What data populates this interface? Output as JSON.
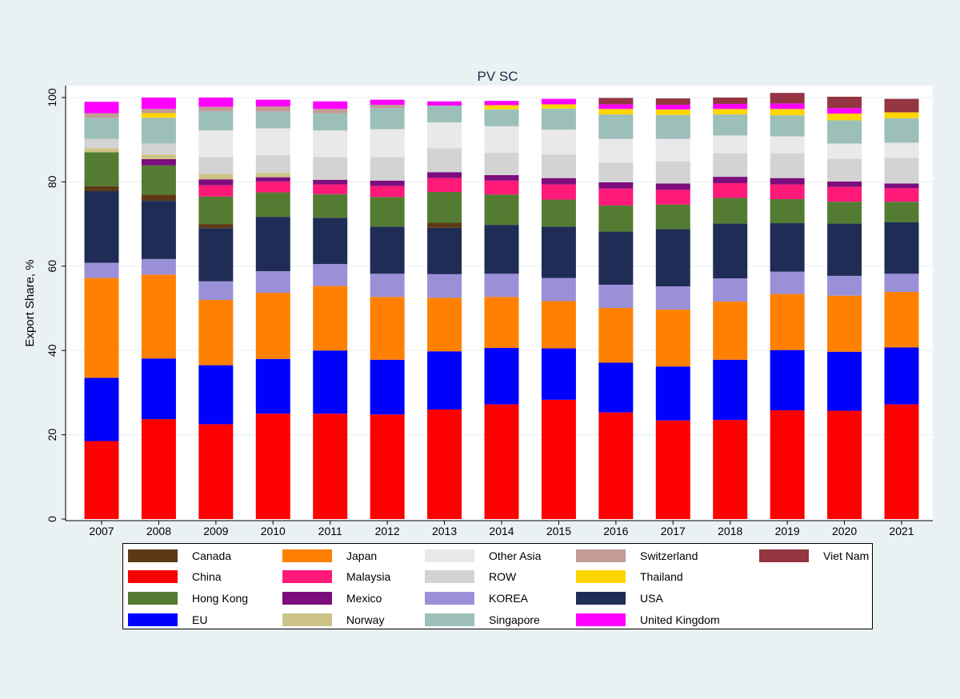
{
  "chart_data": {
    "type": "bar",
    "stacked": true,
    "title": "PV SC",
    "xlabel": "",
    "ylabel": "Export Share, %",
    "ylim": [
      0,
      100
    ],
    "yticks": [
      0,
      20,
      40,
      60,
      80,
      100
    ],
    "grid": true,
    "legend_position": "bottom",
    "categories": [
      "2007",
      "2008",
      "2009",
      "2010",
      "2011",
      "2012",
      "2013",
      "2014",
      "2015",
      "2016",
      "2017",
      "2018",
      "2019",
      "2020",
      "2021"
    ],
    "series": [
      {
        "name": "China",
        "color": "#ff0000",
        "values": [
          18.5,
          23.7,
          22.5,
          25.0,
          25.0,
          24.8,
          26.0,
          27.2,
          28.3,
          25.3,
          23.4,
          23.5,
          25.8,
          25.7,
          27.2
        ]
      },
      {
        "name": "EU",
        "color": "#0000ff",
        "values": [
          15.0,
          14.4,
          14.0,
          13.0,
          15.0,
          13.0,
          13.8,
          13.4,
          12.2,
          11.8,
          12.8,
          14.3,
          14.3,
          14.0,
          13.5
        ]
      },
      {
        "name": "Japan",
        "color": "#ff8000",
        "values": [
          23.7,
          19.9,
          15.5,
          15.7,
          15.3,
          14.9,
          12.7,
          12.1,
          11.2,
          13.0,
          13.5,
          13.8,
          13.3,
          13.3,
          13.2
        ]
      },
      {
        "name": "KOREA",
        "color": "#9a90d8",
        "values": [
          3.6,
          3.7,
          4.4,
          5.1,
          5.2,
          5.5,
          5.6,
          5.5,
          5.5,
          5.5,
          5.5,
          5.5,
          5.3,
          4.7,
          4.3
        ]
      },
      {
        "name": "USA",
        "color": "#1f2d56",
        "values": [
          17.0,
          13.8,
          12.6,
          12.9,
          11.0,
          11.2,
          11.0,
          11.6,
          12.2,
          12.6,
          13.6,
          13.0,
          11.5,
          12.4,
          12.2
        ]
      },
      {
        "name": "Canada",
        "color": "#5c3a16",
        "values": [
          1.2,
          1.5,
          1.0,
          0.0,
          0.0,
          0.0,
          1.2,
          0.0,
          0.0,
          0.0,
          0.0,
          0.0,
          0.0,
          0.0,
          0.0
        ]
      },
      {
        "name": "Hong Kong",
        "color": "#537c32",
        "values": [
          8.0,
          6.9,
          6.5,
          5.8,
          5.6,
          7.0,
          7.3,
          7.2,
          6.4,
          6.2,
          5.8,
          6.1,
          5.7,
          5.2,
          4.9
        ]
      },
      {
        "name": "Malaysia",
        "color": "#ff1a7a",
        "values": [
          0.0,
          0.0,
          2.7,
          2.6,
          2.3,
          2.6,
          3.3,
          3.3,
          3.6,
          4.0,
          3.5,
          3.5,
          3.5,
          3.5,
          3.2
        ]
      },
      {
        "name": "Mexico",
        "color": "#7d0d7d",
        "values": [
          0.0,
          1.5,
          1.4,
          1.0,
          1.1,
          1.3,
          1.4,
          1.3,
          1.5,
          1.5,
          1.5,
          1.5,
          1.5,
          1.3,
          1.1
        ]
      },
      {
        "name": "Norway",
        "color": "#cec386",
        "values": [
          1.0,
          1.1,
          1.3,
          1.0,
          0.0,
          0.0,
          0.0,
          0.0,
          0.0,
          0.0,
          0.0,
          0.0,
          0.0,
          0.0,
          0.0
        ]
      },
      {
        "name": "ROW",
        "color": "#d3d3d3",
        "values": [
          2.2,
          2.6,
          4.0,
          4.3,
          5.4,
          5.6,
          5.7,
          5.3,
          5.6,
          4.7,
          5.3,
          5.6,
          5.9,
          5.4,
          6.1
        ]
      },
      {
        "name": "Other Asia",
        "color": "#e9e9e9",
        "values": [
          0.0,
          0.0,
          6.3,
          6.3,
          6.3,
          6.6,
          6.1,
          6.3,
          5.9,
          5.6,
          5.3,
          4.2,
          4.0,
          3.6,
          3.6
        ]
      },
      {
        "name": "Singapore",
        "color": "#9cbfba",
        "values": [
          5.0,
          6.1,
          4.6,
          4.0,
          4.1,
          5.0,
          4.0,
          4.0,
          5.0,
          5.8,
          5.7,
          5.0,
          5.0,
          5.5,
          5.8
        ]
      },
      {
        "name": "Thailand",
        "color": "#ffd500",
        "values": [
          0.0,
          1.1,
          0.0,
          0.0,
          0.0,
          0.0,
          0.0,
          1.0,
          1.0,
          1.3,
          1.3,
          1.3,
          1.5,
          1.6,
          1.4
        ]
      },
      {
        "name": "Switzerland",
        "color": "#c39c95",
        "values": [
          1.1,
          1.0,
          1.0,
          1.2,
          1.0,
          0.8,
          0.0,
          0.0,
          0.0,
          0.0,
          0.0,
          0.0,
          0.0,
          0.0,
          0.0
        ]
      },
      {
        "name": "United Kingdom",
        "color": "#ff00ff",
        "values": [
          2.7,
          2.7,
          2.2,
          1.6,
          1.8,
          1.2,
          1.0,
          1.0,
          1.3,
          1.1,
          1.1,
          1.2,
          1.3,
          1.3,
          0.0
        ]
      },
      {
        "name": "Viet Nam",
        "color": "#943542",
        "values": [
          0.0,
          0.0,
          0.0,
          0.0,
          0.0,
          0.0,
          0.0,
          0.0,
          0.0,
          1.5,
          1.5,
          1.5,
          2.5,
          2.7,
          3.2
        ]
      }
    ],
    "legend": [
      {
        "name": "Canada",
        "color": "#5c3a16"
      },
      {
        "name": "China",
        "color": "#ff0000"
      },
      {
        "name": "Hong Kong",
        "color": "#537c32"
      },
      {
        "name": "EU",
        "color": "#0000ff"
      },
      {
        "name": "Japan",
        "color": "#ff8000"
      },
      {
        "name": "Malaysia",
        "color": "#ff1a7a"
      },
      {
        "name": "Mexico",
        "color": "#7d0d7d"
      },
      {
        "name": "Norway",
        "color": "#cec386"
      },
      {
        "name": "Other Asia",
        "color": "#e9e9e9"
      },
      {
        "name": "ROW",
        "color": "#d3d3d3"
      },
      {
        "name": "KOREA",
        "color": "#9a90d8"
      },
      {
        "name": "Singapore",
        "color": "#9cbfba"
      },
      {
        "name": "Switzerland",
        "color": "#c39c95"
      },
      {
        "name": "Thailand",
        "color": "#ffd500"
      },
      {
        "name": "USA",
        "color": "#1f2d56"
      },
      {
        "name": "United Kingdom",
        "color": "#ff00ff"
      },
      {
        "name": "Viet Nam",
        "color": "#943542"
      }
    ]
  }
}
